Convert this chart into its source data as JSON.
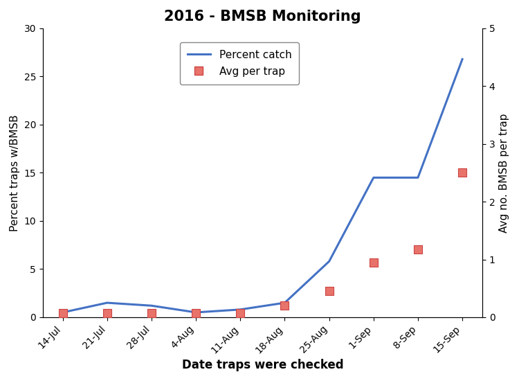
{
  "x_labels": [
    "14-Jul",
    "21-Jul",
    "28-Jul",
    "4-Aug",
    "11-Aug",
    "18-Aug",
    "25-Aug",
    "1-Sep",
    "8-Sep",
    "15-Sep"
  ],
  "percent_catch": [
    0.5,
    1.5,
    1.2,
    0.5,
    0.8,
    1.5,
    5.8,
    14.5,
    14.5,
    26.8
  ],
  "avg_per_trap": [
    0.07,
    0.07,
    0.07,
    0.07,
    0.07,
    0.2,
    0.45,
    0.95,
    1.18,
    2.5
  ],
  "title": "2016 - BMSB Monitoring",
  "xlabel": "Date traps were checked",
  "ylabel_left": "Percent traps w/BMSB",
  "ylabel_right": "Avg no. BMSB per trap",
  "ylim_left": [
    0,
    30
  ],
  "ylim_right": [
    0,
    5
  ],
  "yticks_left": [
    0,
    5,
    10,
    15,
    20,
    25,
    30
  ],
  "yticks_right": [
    0,
    1,
    2,
    3,
    4,
    5
  ],
  "line_color": "#4472C4",
  "line_width": 2.2,
  "marker_color": "#E8736A",
  "marker_edge_color": "#CC4444",
  "legend_line_label": "Percent catch",
  "legend_marker_label": "Avg per trap",
  "title_fontsize": 15,
  "label_fontsize": 11,
  "tick_fontsize": 10,
  "background_color": "#ffffff",
  "figsize": [
    7.5,
    5.5
  ],
  "dpi": 100
}
